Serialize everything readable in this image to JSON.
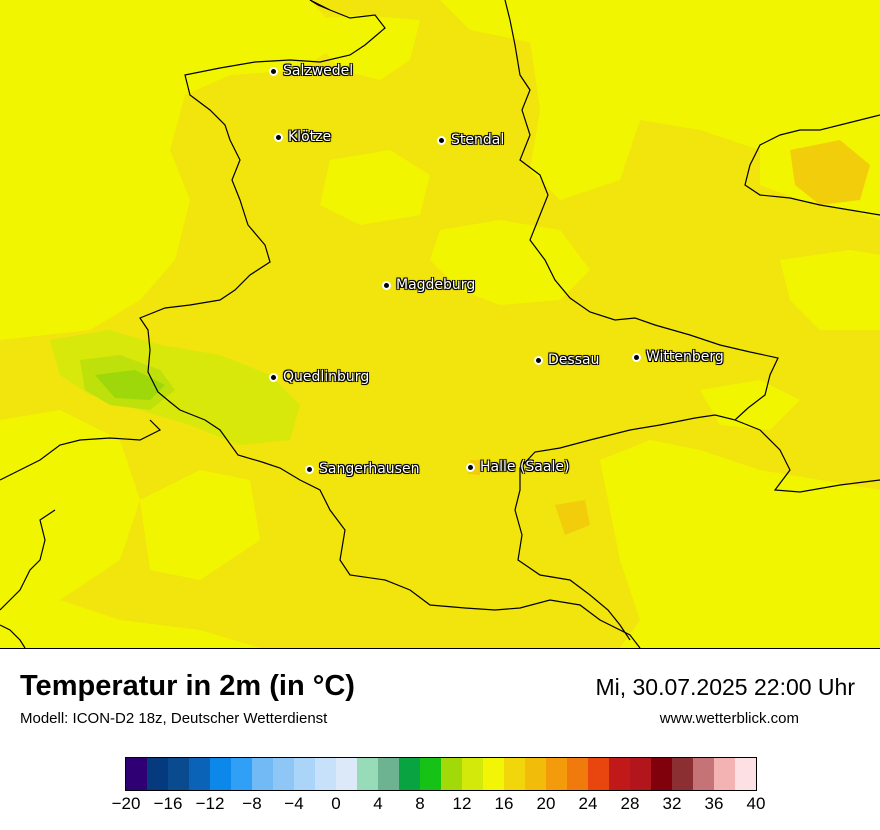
{
  "map": {
    "base_color": "#f2e40d",
    "cities": [
      {
        "name": "Salzwedel"
      },
      {
        "name": "Klötze"
      },
      {
        "name": "Stendal"
      },
      {
        "name": "Magdeburg"
      },
      {
        "name": "Dessau"
      },
      {
        "name": "Wittenberg"
      },
      {
        "name": "Quedlinburg"
      },
      {
        "name": "Sangerhausen"
      },
      {
        "name": "Halle (Saale)"
      }
    ]
  },
  "footer": {
    "title": "Temperatur in 2m (in °C)",
    "model": "Modell: ICON-D2 18z, Deutscher Wetterdienst",
    "datetime": "Mi, 30.07.2025 22:00 Uhr",
    "website": "www.wetterblick.com"
  },
  "legend": {
    "colors": [
      "#2e0073",
      "#063a7e",
      "#0a4a8e",
      "#0b63b7",
      "#0b88ea",
      "#2fa0f5",
      "#72baf6",
      "#8ec7f6",
      "#abd4f9",
      "#c8e1fa",
      "#dbe9f9",
      "#97dbb9",
      "#6db391",
      "#0aa342",
      "#17c216",
      "#a2d909",
      "#d2e909",
      "#f2f505",
      "#f0d60a",
      "#f1bd0a",
      "#f39b0a",
      "#f07a0c",
      "#e9450e",
      "#c1181a",
      "#b3151d",
      "#80000b",
      "#8c2f33",
      "#c67377",
      "#f3b3b3",
      "#fde0e3"
    ],
    "ticks": [
      "−20",
      "−16",
      "−12",
      "−8",
      "−4",
      "0",
      "4",
      "8",
      "12",
      "16",
      "20",
      "24",
      "28",
      "32",
      "36",
      "40"
    ]
  }
}
